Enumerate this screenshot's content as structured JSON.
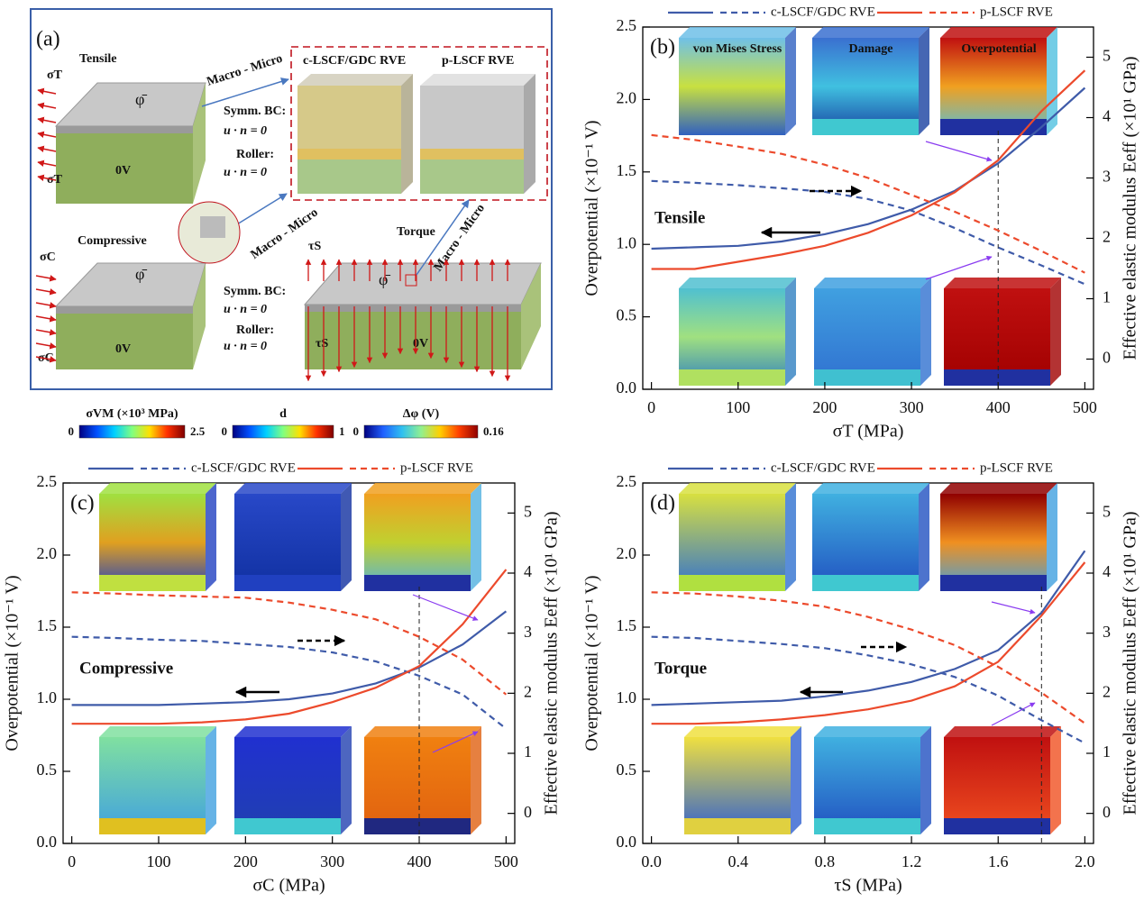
{
  "panel_a": {
    "label": "(a)",
    "tensile": "Tensile",
    "compressive": "Compressive",
    "torque": "Torque",
    "link": "Macro - Micro",
    "rve_c": "c-LSCF/GDC RVE",
    "rve_p": "p-LSCF RVE",
    "symm_bc": "Symm. BC:",
    "roller": "Roller:",
    "bc_eq": "u · n = 0",
    "ground": "0V",
    "sigma_t": "σT",
    "sigma_c": "σC",
    "tau_s": "τS",
    "potential": "φ̄"
  },
  "colorbars": [
    {
      "label": "σVM (×10³ MPa)",
      "min": 0,
      "max": 2.5,
      "colors": [
        "#000080",
        "#0050ff",
        "#00d0ff",
        "#80ff80",
        "#ffe000",
        "#ff3000",
        "#800000"
      ]
    },
    {
      "label": "d",
      "min": 0,
      "max": 1,
      "colors": [
        "#000080",
        "#0050ff",
        "#00d0ff",
        "#80ff80",
        "#ffe000",
        "#ff3000",
        "#800000"
      ]
    },
    {
      "label": "Δφ (V)",
      "min": 0,
      "max": 0.16,
      "colors": [
        "#000080",
        "#2060ff",
        "#30c0f0",
        "#90f090",
        "#ffd000",
        "#ff4000",
        "#900000"
      ]
    }
  ],
  "chart_data": [
    {
      "type": "line",
      "panel_label": "(b)",
      "annotation": "Tensile",
      "inset_labels": [
        "von Mises Stress",
        "Damage",
        "Overpotential"
      ],
      "x_label": "σT (MPa)",
      "y_label": "Overpotential (×10⁻¹ V)",
      "y2_label": "Effective elastic modulus Eeff (×10¹ GPa)",
      "x": [
        0,
        50,
        100,
        150,
        200,
        250,
        300,
        350,
        400,
        450,
        500
      ],
      "series": [
        {
          "name": "c-LSCF/GDC RVE",
          "color": "#3f5ba9",
          "values": [
            0.97,
            0.98,
            0.99,
            1.02,
            1.07,
            1.14,
            1.24,
            1.37,
            1.56,
            1.81,
            2.08
          ],
          "y2_values": [
            2.95,
            2.92,
            2.88,
            2.83,
            2.77,
            2.65,
            2.46,
            2.17,
            1.85,
            1.55,
            1.24
          ]
        },
        {
          "name": "p-LSCF RVE",
          "color": "#ec4a2c",
          "values": [
            0.83,
            0.83,
            0.88,
            0.93,
            0.99,
            1.08,
            1.2,
            1.36,
            1.58,
            1.92,
            2.2
          ],
          "y2_values": [
            3.71,
            3.63,
            3.52,
            3.4,
            3.22,
            3.0,
            2.72,
            2.44,
            2.13,
            1.79,
            1.43
          ]
        }
      ],
      "xlim": [
        -10,
        510
      ],
      "xticks": [
        0,
        100,
        200,
        300,
        400,
        500
      ],
      "ylim": [
        0,
        2.5
      ],
      "yticks": [
        {
          "value": 0,
          "label": "0.0"
        },
        0.5,
        {
          "value": 1,
          "label": "1.0"
        },
        1.5,
        {
          "value": 2,
          "label": "2.0"
        },
        2.5
      ],
      "y2lim": [
        -0.5,
        5.5
      ],
      "y2ticks": [
        0,
        1,
        2,
        3,
        4,
        5
      ],
      "vline": 400
    },
    {
      "type": "line",
      "panel_label": "(c)",
      "annotation": "Compressive",
      "x_label": "σC (MPa)",
      "y_label": "Overpotential  (×10⁻¹ V)",
      "y2_label": "Effective elastic modulus Eeff (×10¹ GPa)",
      "x": [
        0,
        50,
        100,
        150,
        200,
        250,
        300,
        350,
        400,
        450,
        500
      ],
      "series": [
        {
          "name": "c-LSCF/GDC RVE",
          "color": "#3f5ba9",
          "values": [
            0.96,
            0.96,
            0.96,
            0.97,
            0.98,
            1.0,
            1.04,
            1.11,
            1.22,
            1.38,
            1.61
          ],
          "y2_values": [
            2.94,
            2.92,
            2.89,
            2.87,
            2.82,
            2.77,
            2.68,
            2.53,
            2.29,
            1.98,
            1.41
          ]
        },
        {
          "name": "p-LSCF RVE",
          "color": "#ec4a2c",
          "values": [
            0.83,
            0.83,
            0.83,
            0.84,
            0.86,
            0.9,
            0.98,
            1.08,
            1.23,
            1.52,
            1.9
          ],
          "y2_values": [
            3.68,
            3.66,
            3.63,
            3.61,
            3.59,
            3.51,
            3.39,
            3.23,
            2.94,
            2.56,
            1.98
          ]
        }
      ],
      "xlim": [
        -10,
        510
      ],
      "xticks": [
        0,
        100,
        200,
        300,
        400,
        500
      ],
      "ylim": [
        0,
        2.5
      ],
      "yticks": [
        {
          "value": 0,
          "label": "0.0"
        },
        0.5,
        {
          "value": 1,
          "label": "1.0"
        },
        1.5,
        {
          "value": 2,
          "label": "2.0"
        },
        2.5
      ],
      "y2lim": [
        -0.5,
        5.5
      ],
      "y2ticks": [
        0,
        1,
        2,
        3,
        4,
        5
      ],
      "vline": 400
    },
    {
      "type": "line",
      "panel_label": "(d)",
      "annotation": "Torque",
      "x_label": "τS (MPa)",
      "y_label": "Overpotential (×10⁻¹ V)",
      "y2_label": "Effective elastic modulus Eeff (×10¹ GPa)",
      "x": [
        0,
        0.2,
        0.4,
        0.6,
        0.8,
        1.0,
        1.2,
        1.4,
        1.6,
        1.8,
        2.0
      ],
      "series": [
        {
          "name": "c-LSCF/GDC RVE",
          "color": "#3f5ba9",
          "values": [
            0.96,
            0.97,
            0.98,
            0.99,
            1.02,
            1.06,
            1.12,
            1.21,
            1.34,
            1.6,
            2.03
          ],
          "y2_values": [
            2.94,
            2.92,
            2.87,
            2.82,
            2.75,
            2.63,
            2.48,
            2.27,
            1.96,
            1.55,
            1.17
          ]
        },
        {
          "name": "p-LSCF RVE",
          "color": "#ec4a2c",
          "values": [
            0.83,
            0.83,
            0.84,
            0.86,
            0.89,
            0.93,
            0.99,
            1.09,
            1.26,
            1.58,
            1.95
          ],
          "y2_values": [
            3.68,
            3.66,
            3.61,
            3.54,
            3.44,
            3.27,
            3.06,
            2.8,
            2.44,
            2.01,
            1.5
          ]
        }
      ],
      "xlim": [
        -0.04,
        2.04
      ],
      "xticks": [
        {
          "value": 0,
          "label": "0.0"
        },
        0.4,
        0.8,
        1.2,
        1.6,
        {
          "value": 2,
          "label": "2.0"
        }
      ],
      "ylim": [
        0,
        2.5
      ],
      "yticks": [
        {
          "value": 0,
          "label": "0.0"
        },
        0.5,
        {
          "value": 1,
          "label": "1.0"
        },
        1.5,
        {
          "value": 2,
          "label": "2.0"
        },
        2.5
      ],
      "y2lim": [
        -0.5,
        5.5
      ],
      "y2ticks": [
        0,
        1,
        2,
        3,
        4,
        5
      ],
      "vline": 1.8
    }
  ]
}
